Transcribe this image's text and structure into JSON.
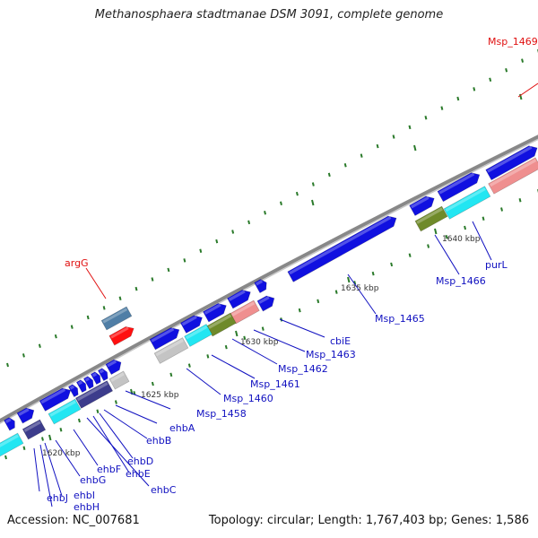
{
  "title": "Methanosphaera stadtmanae DSM 3091, complete genome",
  "accession": "Accession: NC_007681",
  "summary": "Topology: circular; Length: 1,767,403 bp; Genes: 1,586",
  "colors": {
    "backbone": "#888888",
    "tick": "#2a7a2a",
    "gene_blue": "#1010e0",
    "gene_red": "#ff1010",
    "gene_steel": "#4f7ea6",
    "gene_cyan": "#22e6f2",
    "gene_navy": "#3c3c8c",
    "gene_olive": "#6f8a2a",
    "gene_pink": "#ef8f8f",
    "gene_grey": "#c4c4c4",
    "label_blue": "#1010c0",
    "label_red": "#e01010"
  },
  "kbp_labels": [
    "1620 kbp",
    "1625 kbp",
    "1630 kbp",
    "1635 kbp",
    "1640 kbp"
  ],
  "gene_labels": [
    {
      "text": "Msp_1469",
      "color": "red"
    },
    {
      "text": "argG",
      "color": "red"
    },
    {
      "text": "Msp_1466",
      "color": "blue"
    },
    {
      "text": "purL",
      "color": "blue"
    },
    {
      "text": "Msp_1465",
      "color": "blue"
    },
    {
      "text": "cbiE",
      "color": "blue"
    },
    {
      "text": "Msp_1463",
      "color": "blue"
    },
    {
      "text": "Msp_1462",
      "color": "blue"
    },
    {
      "text": "Msp_1461",
      "color": "blue"
    },
    {
      "text": "Msp_1460",
      "color": "blue"
    },
    {
      "text": "Msp_1458",
      "color": "blue"
    },
    {
      "text": "ehbA",
      "color": "blue"
    },
    {
      "text": "ehbB",
      "color": "blue"
    },
    {
      "text": "ehbD",
      "color": "blue"
    },
    {
      "text": "ehbE",
      "color": "blue"
    },
    {
      "text": "ehbC",
      "color": "blue"
    },
    {
      "text": "ehbF",
      "color": "blue"
    },
    {
      "text": "ehbG",
      "color": "blue"
    },
    {
      "text": "ehbI",
      "color": "blue"
    },
    {
      "text": "ehbH",
      "color": "blue"
    },
    {
      "text": "ehbJ",
      "color": "blue"
    }
  ]
}
